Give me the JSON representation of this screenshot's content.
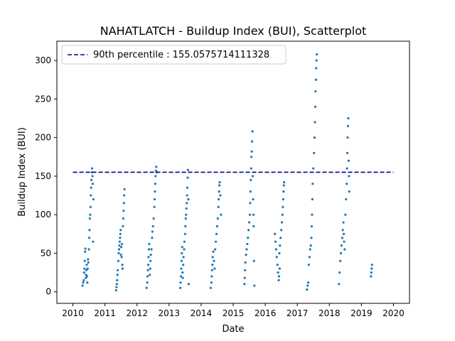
{
  "chart_data": {
    "type": "scatter",
    "title": "NAHATLATCH - Buildup Index (BUI), Scatterplot",
    "xlabel": "Date",
    "ylabel": "Buildup Index (BUI)",
    "xlim": [
      2009.5,
      2020.5
    ],
    "ylim": [
      -15,
      325
    ],
    "x_ticks": [
      "2010",
      "2011",
      "2012",
      "2013",
      "2014",
      "2015",
      "2016",
      "2017",
      "2018",
      "2019",
      "2020"
    ],
    "y_ticks": [
      "0",
      "50",
      "100",
      "150",
      "200",
      "250",
      "300"
    ],
    "point_color": "#1f77b4",
    "reference_line": {
      "label": "90th percentile : 155.0575714111328",
      "y": 155.0575714111328,
      "x_range": [
        2010,
        2020
      ],
      "color": "#00008b",
      "style": "dashed"
    },
    "legend_position": "top-left",
    "series": [
      {
        "points": [
          [
            2010.3,
            8
          ],
          [
            2010.32,
            12
          ],
          [
            2010.34,
            15
          ],
          [
            2010.35,
            25
          ],
          [
            2010.36,
            30
          ],
          [
            2010.37,
            40
          ],
          [
            2010.38,
            52
          ],
          [
            2010.39,
            56
          ],
          [
            2010.4,
            18
          ],
          [
            2010.41,
            22
          ],
          [
            2010.42,
            28
          ],
          [
            2010.43,
            35
          ],
          [
            2010.44,
            20
          ],
          [
            2010.45,
            12
          ],
          [
            2010.46,
            30
          ],
          [
            2010.47,
            42
          ],
          [
            2010.48,
            38
          ],
          [
            2010.5,
            55
          ],
          [
            2010.51,
            70
          ],
          [
            2010.52,
            80
          ],
          [
            2010.53,
            95
          ],
          [
            2010.54,
            100
          ],
          [
            2010.55,
            110
          ],
          [
            2010.56,
            125
          ],
          [
            2010.57,
            135
          ],
          [
            2010.58,
            145
          ],
          [
            2010.59,
            155
          ],
          [
            2010.6,
            160
          ],
          [
            2010.61,
            150
          ],
          [
            2010.62,
            140
          ],
          [
            2010.63,
            65
          ],
          [
            2010.64,
            120
          ],
          [
            2011.35,
            2
          ],
          [
            2011.36,
            6
          ],
          [
            2011.37,
            10
          ],
          [
            2011.38,
            15
          ],
          [
            2011.39,
            22
          ],
          [
            2011.4,
            28
          ],
          [
            2011.42,
            40
          ],
          [
            2011.43,
            50
          ],
          [
            2011.44,
            55
          ],
          [
            2011.45,
            60
          ],
          [
            2011.46,
            65
          ],
          [
            2011.47,
            70
          ],
          [
            2011.48,
            75
          ],
          [
            2011.49,
            80
          ],
          [
            2011.5,
            48
          ],
          [
            2011.51,
            58
          ],
          [
            2011.52,
            45
          ],
          [
            2011.53,
            62
          ],
          [
            2011.54,
            35
          ],
          [
            2011.55,
            30
          ],
          [
            2011.56,
            85
          ],
          [
            2011.57,
            95
          ],
          [
            2011.58,
            105
          ],
          [
            2011.59,
            115
          ],
          [
            2011.6,
            125
          ],
          [
            2011.61,
            133
          ],
          [
            2012.3,
            5
          ],
          [
            2012.32,
            12
          ],
          [
            2012.33,
            20
          ],
          [
            2012.34,
            28
          ],
          [
            2012.35,
            35
          ],
          [
            2012.36,
            45
          ],
          [
            2012.37,
            55
          ],
          [
            2012.38,
            62
          ],
          [
            2012.4,
            22
          ],
          [
            2012.41,
            30
          ],
          [
            2012.42,
            40
          ],
          [
            2012.43,
            48
          ],
          [
            2012.45,
            55
          ],
          [
            2012.47,
            70
          ],
          [
            2012.48,
            78
          ],
          [
            2012.5,
            85
          ],
          [
            2012.52,
            95
          ],
          [
            2012.54,
            110
          ],
          [
            2012.55,
            120
          ],
          [
            2012.56,
            130
          ],
          [
            2012.57,
            140
          ],
          [
            2012.58,
            150
          ],
          [
            2012.59,
            157
          ],
          [
            2012.6,
            162
          ],
          [
            2012.61,
            155
          ],
          [
            2013.35,
            5
          ],
          [
            2013.36,
            12
          ],
          [
            2013.37,
            20
          ],
          [
            2013.38,
            30
          ],
          [
            2013.39,
            40
          ],
          [
            2013.4,
            50
          ],
          [
            2013.41,
            58
          ],
          [
            2013.42,
            25
          ],
          [
            2013.43,
            18
          ],
          [
            2013.44,
            35
          ],
          [
            2013.45,
            45
          ],
          [
            2013.47,
            55
          ],
          [
            2013.48,
            65
          ],
          [
            2013.5,
            75
          ],
          [
            2013.51,
            85
          ],
          [
            2013.52,
            95
          ],
          [
            2013.53,
            100
          ],
          [
            2013.54,
            108
          ],
          [
            2013.55,
            115
          ],
          [
            2013.56,
            125
          ],
          [
            2013.57,
            135
          ],
          [
            2013.58,
            148
          ],
          [
            2013.59,
            158
          ],
          [
            2013.6,
            120
          ],
          [
            2013.61,
            10
          ],
          [
            2014.3,
            5
          ],
          [
            2014.32,
            12
          ],
          [
            2014.33,
            20
          ],
          [
            2014.34,
            28
          ],
          [
            2014.35,
            35
          ],
          [
            2014.36,
            45
          ],
          [
            2014.38,
            52
          ],
          [
            2014.4,
            40
          ],
          [
            2014.42,
            30
          ],
          [
            2014.44,
            55
          ],
          [
            2014.46,
            65
          ],
          [
            2014.48,
            75
          ],
          [
            2014.5,
            85
          ],
          [
            2014.52,
            95
          ],
          [
            2014.54,
            110
          ],
          [
            2014.55,
            120
          ],
          [
            2014.56,
            130
          ],
          [
            2014.57,
            138
          ],
          [
            2014.58,
            142
          ],
          [
            2014.6,
            125
          ],
          [
            2014.62,
            100
          ],
          [
            2015.35,
            10
          ],
          [
            2015.36,
            18
          ],
          [
            2015.37,
            28
          ],
          [
            2015.38,
            38
          ],
          [
            2015.4,
            48
          ],
          [
            2015.42,
            55
          ],
          [
            2015.44,
            62
          ],
          [
            2015.46,
            70
          ],
          [
            2015.48,
            80
          ],
          [
            2015.5,
            90
          ],
          [
            2015.52,
            100
          ],
          [
            2015.53,
            115
          ],
          [
            2015.54,
            130
          ],
          [
            2015.55,
            145
          ],
          [
            2015.56,
            160
          ],
          [
            2015.57,
            175
          ],
          [
            2015.58,
            182
          ],
          [
            2015.59,
            195
          ],
          [
            2015.6,
            208
          ],
          [
            2015.61,
            150
          ],
          [
            2015.62,
            120
          ],
          [
            2015.63,
            100
          ],
          [
            2015.64,
            85
          ],
          [
            2015.65,
            40
          ],
          [
            2015.66,
            8
          ],
          [
            2016.3,
            75
          ],
          [
            2016.32,
            65
          ],
          [
            2016.34,
            55
          ],
          [
            2016.36,
            45
          ],
          [
            2016.38,
            35
          ],
          [
            2016.4,
            25
          ],
          [
            2016.42,
            15
          ],
          [
            2016.44,
            50
          ],
          [
            2016.46,
            60
          ],
          [
            2016.48,
            70
          ],
          [
            2016.5,
            80
          ],
          [
            2016.52,
            90
          ],
          [
            2016.54,
            100
          ],
          [
            2016.55,
            110
          ],
          [
            2016.56,
            120
          ],
          [
            2016.57,
            130
          ],
          [
            2016.58,
            138
          ],
          [
            2016.59,
            142
          ],
          [
            2016.45,
            30
          ],
          [
            2016.43,
            20
          ],
          [
            2017.3,
            3
          ],
          [
            2017.32,
            8
          ],
          [
            2017.34,
            12
          ],
          [
            2017.36,
            35
          ],
          [
            2017.38,
            45
          ],
          [
            2017.4,
            55
          ],
          [
            2017.42,
            60
          ],
          [
            2017.44,
            70
          ],
          [
            2017.45,
            85
          ],
          [
            2017.46,
            100
          ],
          [
            2017.47,
            120
          ],
          [
            2017.48,
            140
          ],
          [
            2017.5,
            160
          ],
          [
            2017.52,
            180
          ],
          [
            2017.54,
            200
          ],
          [
            2017.55,
            220
          ],
          [
            2017.56,
            240
          ],
          [
            2017.57,
            260
          ],
          [
            2017.58,
            275
          ],
          [
            2017.59,
            290
          ],
          [
            2017.6,
            300
          ],
          [
            2017.61,
            308
          ],
          [
            2018.3,
            10
          ],
          [
            2018.32,
            25
          ],
          [
            2018.34,
            40
          ],
          [
            2018.36,
            50
          ],
          [
            2018.38,
            60
          ],
          [
            2018.4,
            70
          ],
          [
            2018.42,
            80
          ],
          [
            2018.44,
            90
          ],
          [
            2018.45,
            75
          ],
          [
            2018.46,
            65
          ],
          [
            2018.48,
            55
          ],
          [
            2018.5,
            100
          ],
          [
            2018.52,
            120
          ],
          [
            2018.54,
            140
          ],
          [
            2018.55,
            160
          ],
          [
            2018.56,
            180
          ],
          [
            2018.57,
            200
          ],
          [
            2018.58,
            215
          ],
          [
            2018.59,
            225
          ],
          [
            2018.6,
            170
          ],
          [
            2018.61,
            150
          ],
          [
            2018.62,
            130
          ],
          [
            2019.3,
            20
          ],
          [
            2019.31,
            25
          ],
          [
            2019.32,
            30
          ],
          [
            2019.33,
            35
          ]
        ]
      }
    ]
  }
}
